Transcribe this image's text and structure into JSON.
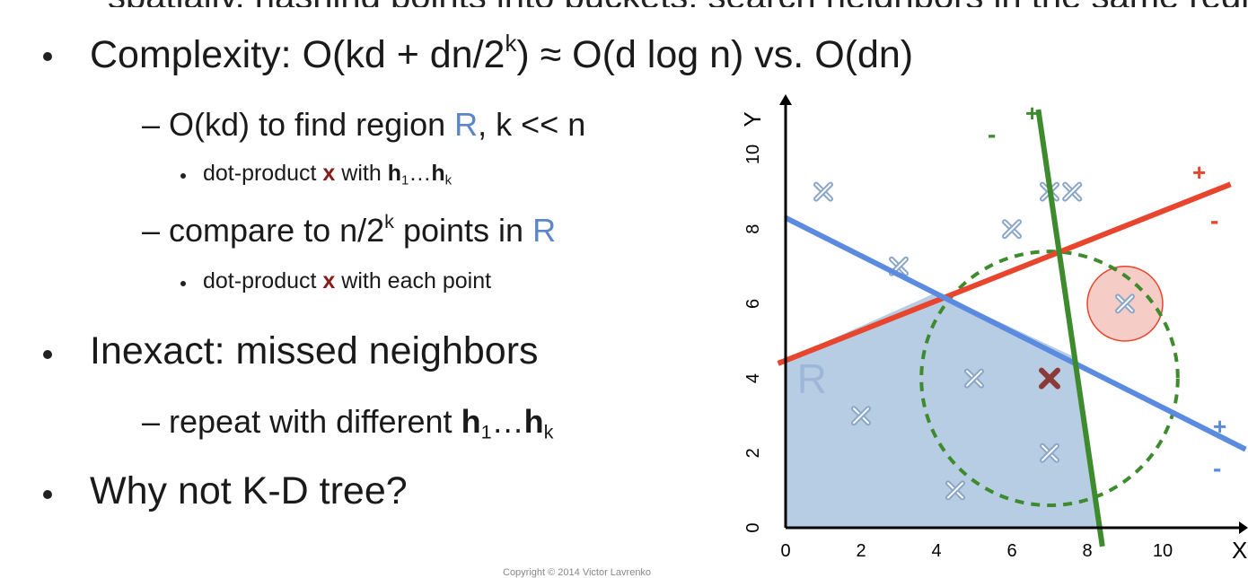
{
  "slide": {
    "cut_top_text": "spatially, hashing points into buckets; search neighbors in the same region",
    "complexity": {
      "prefix": "Complexity: O(kd + dn/2",
      "sup_k": "k",
      "suffix": ") ≈ O(d log n)  vs. O(dn)"
    },
    "find_region": {
      "prefix": "– O(kd) to find region ",
      "R": "R",
      "suffix": ", k << n"
    },
    "dot_product_h": {
      "prefix": "dot-product ",
      "x": "x",
      "with": " with ",
      "h1": "h",
      "sub1": "1",
      "ellipsis": "…",
      "hk": "h",
      "subk": "k"
    },
    "compare": {
      "prefix": "– compare to n/2",
      "sup_k": "k",
      "mid": " points in ",
      "R": "R"
    },
    "dot_product_each": {
      "prefix": "dot-product ",
      "x": "x",
      "suffix": " with each point"
    },
    "inexact": "Inexact: missed neighbors",
    "repeat": {
      "prefix": "– repeat with different ",
      "h1": "h",
      "sub1": "1",
      "ellipsis": "…",
      "hk": "h",
      "subk": "k"
    },
    "why": "Why not K-D tree?",
    "footer": "Copyright © 2014 Victor Lavrenko"
  },
  "chart_data": {
    "type": "scatter",
    "xlim": [
      0,
      10.5
    ],
    "ylim": [
      0,
      10.5
    ],
    "x_ticks": [
      "0",
      "2",
      "4",
      "6",
      "8",
      "10"
    ],
    "y_ticks": [
      "0",
      "2",
      "4",
      "6",
      "8",
      "10"
    ],
    "xlabel": "X",
    "ylabel": "Y",
    "region_label": "R",
    "points": [
      {
        "x": 1,
        "y": 9
      },
      {
        "x": 3,
        "y": 7
      },
      {
        "x": 6,
        "y": 8
      },
      {
        "x": 7,
        "y": 9
      },
      {
        "x": 7.6,
        "y": 9
      },
      {
        "x": 2,
        "y": 3
      },
      {
        "x": 5,
        "y": 4
      },
      {
        "x": 4.5,
        "y": 1
      },
      {
        "x": 7,
        "y": 2
      },
      {
        "x": 9,
        "y": 6
      }
    ],
    "query_point": {
      "x": 7,
      "y": 4
    },
    "region_R": [
      [
        0,
        0
      ],
      [
        8.4,
        0
      ],
      [
        7.6,
        4.6
      ],
      [
        4,
        6.3
      ],
      [
        0,
        4.5
      ]
    ],
    "hyperplanes": [
      {
        "color": "#e8452e",
        "from": [
          -0.2,
          4.4
        ],
        "to": [
          11.8,
          9.2
        ],
        "plus_label": "+",
        "minus_label": "-"
      },
      {
        "color": "#5b8be0",
        "from": [
          0,
          8.3
        ],
        "to": [
          12.2,
          2.1
        ],
        "plus_label": "+",
        "minus_label": "-"
      },
      {
        "color": "#3e8b2e",
        "from": [
          6.7,
          11.2
        ],
        "to": [
          8.4,
          -0.5
        ],
        "plus_label": "+",
        "minus_label": "-"
      }
    ],
    "neighborhood_circle": {
      "center": [
        7,
        4
      ],
      "radius": 3.4,
      "color": "#3e8b2e"
    },
    "missed_neighbor_highlight": {
      "center": [
        9,
        6
      ],
      "radius": 1,
      "color": "#e8452e"
    },
    "colors": {
      "region_fill": "#b7cde4",
      "point": "#8aa6c8",
      "query": "#8b3a3a",
      "axis": "#000000"
    }
  }
}
